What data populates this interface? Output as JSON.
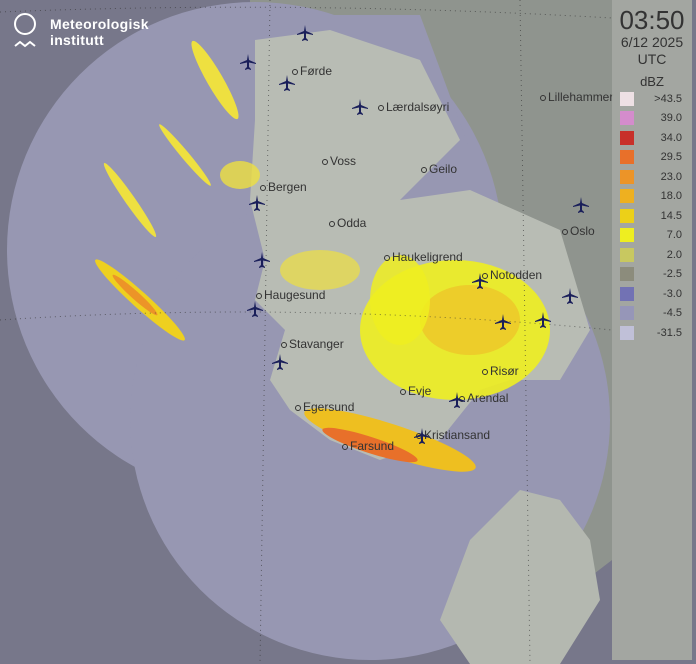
{
  "brand": {
    "name_line1": "Meteorologisk",
    "name_line2": "institutt"
  },
  "legend": {
    "time": "03:50",
    "date": "6/12 2025",
    "timezone": "UTC",
    "unit": "dBZ",
    "levels": [
      {
        "label": ">43.5",
        "color": "#eee0e4"
      },
      {
        "label": "39.0",
        "color": "#d48ccc"
      },
      {
        "label": "34.0",
        "color": "#c8302a"
      },
      {
        "label": "29.5",
        "color": "#e8702a"
      },
      {
        "label": "23.0",
        "color": "#ec9428"
      },
      {
        "label": "18.0",
        "color": "#eeb020"
      },
      {
        "label": "14.5",
        "color": "#ecd018"
      },
      {
        "label": "7.0",
        "color": "#eeee20"
      },
      {
        "label": "2.0",
        "color": "#c8c860"
      },
      {
        "label": "-2.5",
        "color": "#8c8c7c"
      },
      {
        "label": "-3.0",
        "color": "#7272b4"
      },
      {
        "label": "-4.5",
        "color": "#9696b8"
      },
      {
        "label": "-31.5",
        "color": "#c0c0d8"
      }
    ]
  },
  "cities": [
    "Førde",
    "Lærdalsøyri",
    "Lillehammer",
    "Voss",
    "Geilo",
    "Bergen",
    "Odda",
    "Oslo",
    "Haukeligrend",
    "Notodden",
    "Haugesund",
    "Stavanger",
    "Risør",
    "Evje",
    "Arendal",
    "Egersund",
    "Kristiansand",
    "Farsund"
  ],
  "icons": {
    "airport": "airplane-icon",
    "logo": "met-logo-icon"
  }
}
